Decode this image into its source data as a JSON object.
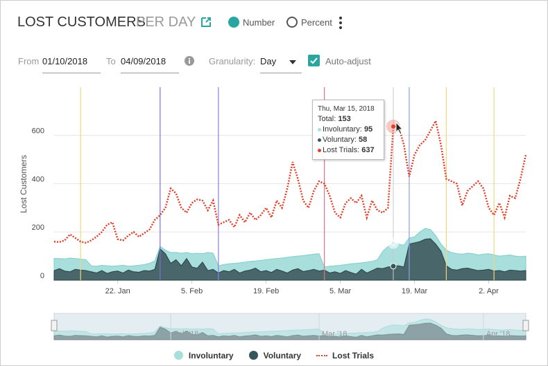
{
  "header": {
    "title": "LOST CUSTOMERS",
    "subtitle": "PER DAY",
    "options": [
      "Number",
      "Percent"
    ],
    "selected": 0
  },
  "controls": {
    "from_label": "From",
    "from": "01/10/2018",
    "to_label": "To",
    "to": "04/09/2018",
    "granularity_label": "Granularity:",
    "granularity": "Day",
    "auto_adjust": "Auto-adjust"
  },
  "chart_data": {
    "type": "area",
    "y_label": "Lost Customers",
    "x": [
      "2018-01-10",
      "2018-01-11",
      "2018-01-12",
      "2018-01-13",
      "2018-01-14",
      "2018-01-15",
      "2018-01-16",
      "2018-01-17",
      "2018-01-18",
      "2018-01-19",
      "2018-01-20",
      "2018-01-21",
      "2018-01-22",
      "2018-01-23",
      "2018-01-24",
      "2018-01-25",
      "2018-01-26",
      "2018-01-27",
      "2018-01-28",
      "2018-01-29",
      "2018-01-30",
      "2018-01-31",
      "2018-02-01",
      "2018-02-02",
      "2018-02-03",
      "2018-02-04",
      "2018-02-05",
      "2018-02-06",
      "2018-02-07",
      "2018-02-08",
      "2018-02-09",
      "2018-02-10",
      "2018-02-11",
      "2018-02-12",
      "2018-02-13",
      "2018-02-14",
      "2018-02-15",
      "2018-02-16",
      "2018-02-17",
      "2018-02-18",
      "2018-02-19",
      "2018-02-20",
      "2018-02-21",
      "2018-02-22",
      "2018-02-23",
      "2018-02-24",
      "2018-02-25",
      "2018-02-26",
      "2018-02-27",
      "2018-02-28",
      "2018-03-01",
      "2018-03-02",
      "2018-03-03",
      "2018-03-04",
      "2018-03-05",
      "2018-03-06",
      "2018-03-07",
      "2018-03-08",
      "2018-03-09",
      "2018-03-10",
      "2018-03-11",
      "2018-03-12",
      "2018-03-13",
      "2018-03-14",
      "2018-03-15",
      "2018-03-16",
      "2018-03-17",
      "2018-03-18",
      "2018-03-19",
      "2018-03-20",
      "2018-03-21",
      "2018-03-22",
      "2018-03-23",
      "2018-03-24",
      "2018-03-25",
      "2018-03-26",
      "2018-03-27",
      "2018-03-28",
      "2018-03-29",
      "2018-03-30",
      "2018-03-31",
      "2018-04-01",
      "2018-04-02",
      "2018-04-03",
      "2018-04-04",
      "2018-04-05",
      "2018-04-06",
      "2018-04-07",
      "2018-04-08",
      "2018-04-09"
    ],
    "xlim": [
      "2018-01-10",
      "2018-04-09"
    ],
    "xticks": [
      {
        "value": "2018-01-22",
        "label": "22. Jan"
      },
      {
        "value": "2018-02-05",
        "label": "5. Feb"
      },
      {
        "value": "2018-02-19",
        "label": "19. Feb"
      },
      {
        "value": "2018-03-05",
        "label": "5. Mar"
      },
      {
        "value": "2018-03-19",
        "label": "19. Mar"
      },
      {
        "value": "2018-04-02",
        "label": "2. Apr"
      }
    ],
    "ylim": [
      0,
      800
    ],
    "yticks": [
      0,
      200,
      400,
      600
    ],
    "grid": true,
    "stacked": true,
    "series": [
      {
        "name": "Involuntary",
        "color": "#a8dedc",
        "values": [
          50,
          42,
          50,
          57,
          45,
          46,
          45,
          25,
          28,
          22,
          32,
          23,
          22,
          32,
          16,
          25,
          29,
          25,
          32,
          35,
          10,
          15,
          45,
          30,
          52,
          25,
          55,
          62,
          35,
          75,
          67,
          30,
          25,
          33,
          25,
          42,
          37,
          36,
          30,
          47,
          45,
          56,
          45,
          54,
          65,
          56,
          52,
          66,
          65,
          63,
          72,
          13,
          28,
          25,
          34,
          25,
          36,
          45,
          27,
          45,
          38,
          35,
          72,
          85,
          95,
          90,
          90,
          25,
          25,
          40,
          45,
          38,
          35,
          30,
          65,
          70,
          68,
          60,
          62,
          65,
          65,
          66,
          65,
          67,
          60,
          67,
          63,
          60,
          60,
          60
        ]
      },
      {
        "name": "Voluntary",
        "color": "#35575b",
        "values": [
          40,
          48,
          38,
          35,
          45,
          42,
          40,
          35,
          30,
          40,
          28,
          35,
          38,
          30,
          42,
          35,
          33,
          40,
          38,
          45,
          130,
          110,
          70,
          85,
          60,
          90,
          55,
          50,
          75,
          40,
          45,
          30,
          40,
          35,
          45,
          30,
          38,
          42,
          50,
          35,
          40,
          32,
          45,
          38,
          30,
          42,
          48,
          36,
          40,
          45,
          38,
          42,
          30,
          35,
          28,
          40,
          32,
          25,
          45,
          30,
          40,
          50,
          48,
          55,
          58,
          60,
          55,
          150,
          155,
          160,
          170,
          172,
          150,
          120,
          60,
          45,
          42,
          48,
          50,
          45,
          40,
          42,
          45,
          38,
          40,
          35,
          42,
          40,
          38,
          40
        ]
      },
      {
        "name": "Lost Trials",
        "color": "#e0402a",
        "values": [
          160,
          158,
          165,
          190,
          175,
          160,
          155,
          165,
          180,
          200,
          230,
          240,
          170,
          165,
          185,
          200,
          180,
          195,
          210,
          250,
          270,
          300,
          380,
          360,
          300,
          280,
          320,
          335,
          330,
          290,
          330,
          230,
          240,
          250,
          220,
          270,
          240,
          280,
          250,
          270,
          300,
          260,
          330,
          300,
          380,
          490,
          420,
          330,
          300,
          370,
          410,
          400,
          350,
          280,
          260,
          320,
          340,
          320,
          350,
          260,
          330,
          290,
          280,
          300,
          637,
          640,
          560,
          430,
          520,
          560,
          580,
          620,
          660,
          560,
          420,
          410,
          400,
          310,
          370,
          390,
          410,
          380,
          300,
          270,
          320,
          260,
          350,
          340,
          420,
          520
        ]
      }
    ],
    "plot_lines": [
      {
        "x": "2018-01-15",
        "color": "#f5d57a"
      },
      {
        "x": "2018-01-30",
        "color": "#7b6fd6"
      },
      {
        "x": "2018-02-10",
        "color": "#8a7ee8"
      },
      {
        "x": "2018-03-02",
        "color": "#e0708a"
      },
      {
        "x": "2018-03-18",
        "color": "#8aa0e8"
      },
      {
        "x": "2018-03-25",
        "color": "#f5d57a"
      },
      {
        "x": "2018-04-03",
        "color": "#f5d57a"
      }
    ],
    "tooltip": {
      "date": "Thu, Mar 15, 2018",
      "x": "2018-03-15",
      "total_label": "Total:",
      "total": 153,
      "labels": [
        "Involuntary:",
        "Voluntary:",
        "Lost Trials:"
      ]
    },
    "navigator_labels": [
      {
        "value": "2018-02-01",
        "label": "Feb '18"
      },
      {
        "value": "2018-03-01",
        "label": "Mar '18"
      },
      {
        "value": "2018-04-01",
        "label": "Apr '18"
      }
    ]
  }
}
